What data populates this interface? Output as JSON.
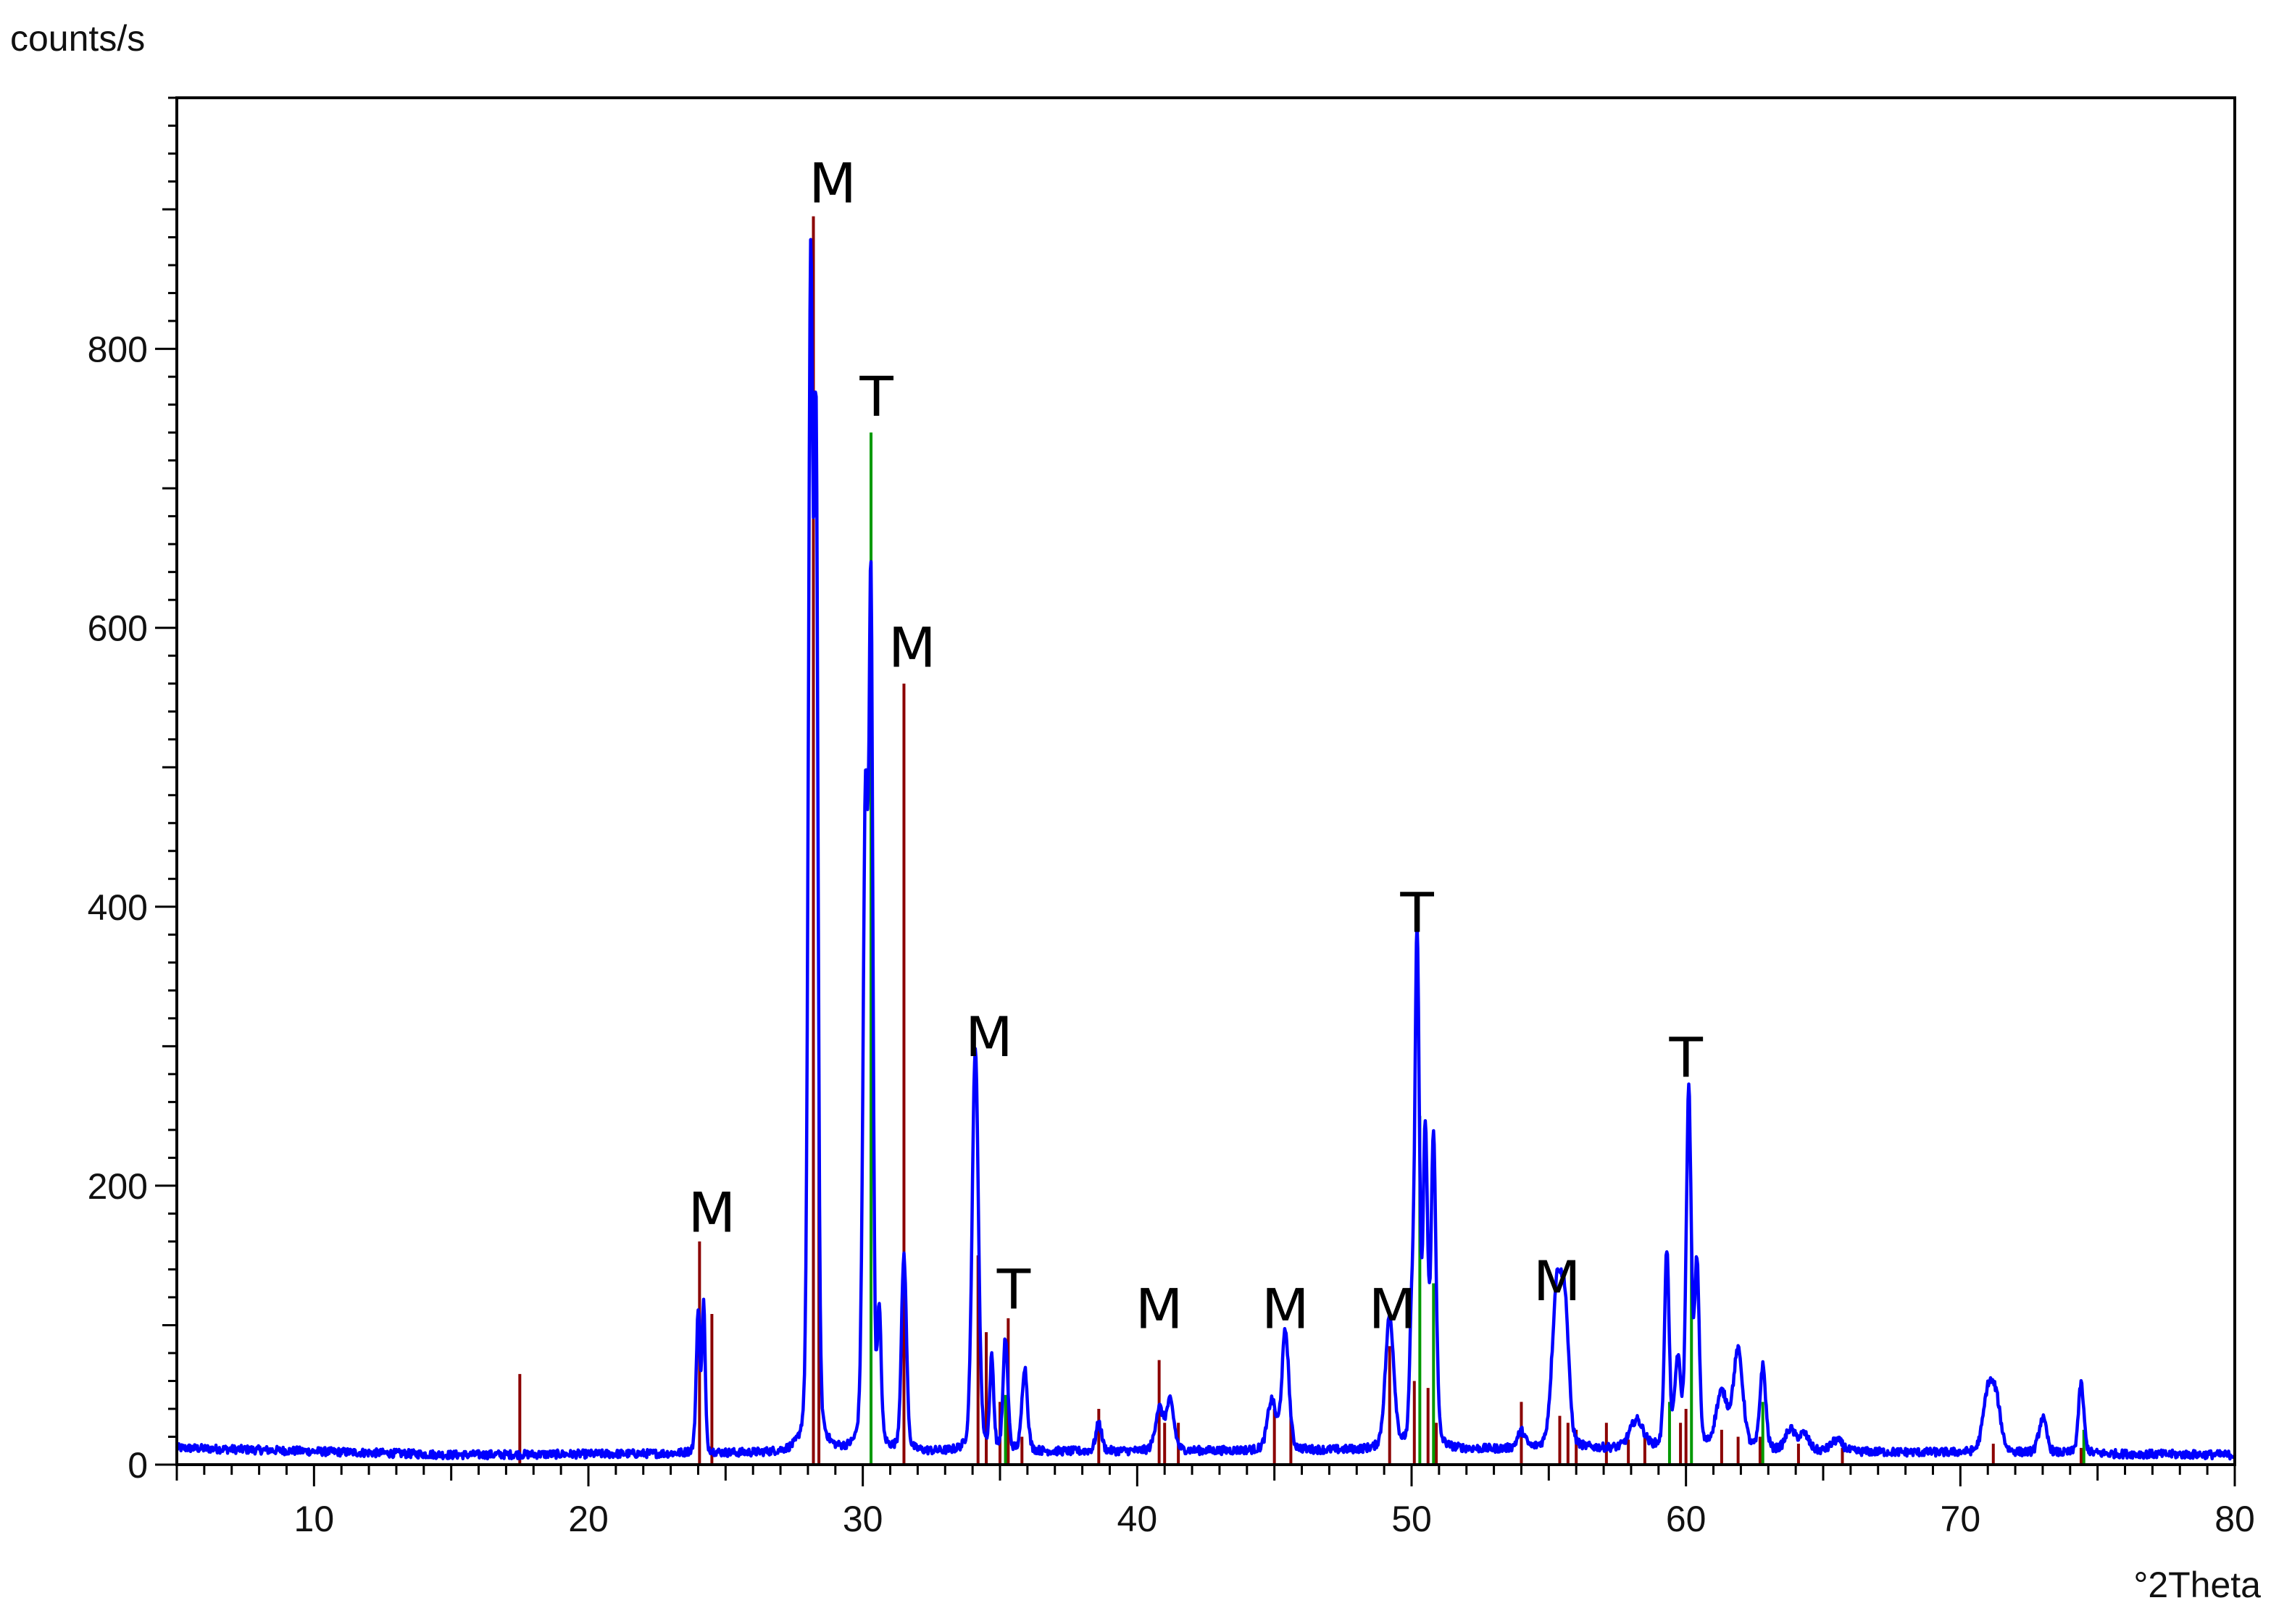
{
  "chart_data": {
    "type": "line",
    "ylabel": "counts/s",
    "xlabel": "°2Theta",
    "xlim": [
      5,
      80
    ],
    "ylim": [
      0,
      980
    ],
    "xticks": [
      10,
      20,
      30,
      40,
      50,
      60,
      70,
      80
    ],
    "yticks": [
      0,
      200,
      400,
      600,
      800
    ],
    "grid": false,
    "colors": {
      "measured": "#0000ff",
      "phase_m": "#8b0000",
      "phase_t": "#009900"
    },
    "measured_peaks": [
      [
        24.0,
        100,
        0.1
      ],
      [
        24.2,
        105,
        0.08
      ],
      [
        28.1,
        835,
        0.12
      ],
      [
        28.3,
        680,
        0.1
      ],
      [
        30.1,
        460,
        0.13
      ],
      [
        30.3,
        580,
        0.1
      ],
      [
        30.6,
        90,
        0.1
      ],
      [
        31.5,
        140,
        0.13
      ],
      [
        34.1,
        290,
        0.16
      ],
      [
        34.7,
        65,
        0.1
      ],
      [
        35.2,
        80,
        0.12
      ],
      [
        35.9,
        60,
        0.14
      ],
      [
        38.6,
        20,
        0.15
      ],
      [
        40.8,
        30,
        0.2
      ],
      [
        41.2,
        35,
        0.2
      ],
      [
        44.9,
        35,
        0.22
      ],
      [
        45.4,
        85,
        0.18
      ],
      [
        49.2,
        95,
        0.22
      ],
      [
        50.0,
        80,
        0.1
      ],
      [
        50.2,
        365,
        0.12
      ],
      [
        50.5,
        220,
        0.12
      ],
      [
        50.8,
        220,
        0.13
      ],
      [
        54.0,
        12,
        0.2
      ],
      [
        55.3,
        115,
        0.25
      ],
      [
        55.6,
        85,
        0.2
      ],
      [
        58.2,
        20,
        0.35
      ],
      [
        59.3,
        140,
        0.12
      ],
      [
        59.7,
        60,
        0.15
      ],
      [
        60.1,
        255,
        0.13
      ],
      [
        60.4,
        130,
        0.12
      ],
      [
        61.3,
        40,
        0.3
      ],
      [
        61.9,
        70,
        0.25
      ],
      [
        62.8,
        60,
        0.15
      ],
      [
        63.8,
        15,
        0.25
      ],
      [
        64.3,
        12,
        0.25
      ],
      [
        65.5,
        8,
        0.3
      ],
      [
        71.0,
        40,
        0.25
      ],
      [
        71.3,
        35,
        0.25
      ],
      [
        73.0,
        25,
        0.2
      ],
      [
        74.4,
        50,
        0.14
      ]
    ],
    "reference_m": [
      [
        17.5,
        65
      ],
      [
        24.05,
        160
      ],
      [
        24.5,
        108
      ],
      [
        28.2,
        895
      ],
      [
        28.4,
        270
      ],
      [
        31.5,
        560
      ],
      [
        34.2,
        150
      ],
      [
        34.5,
        95
      ],
      [
        35.0,
        45
      ],
      [
        35.3,
        105
      ],
      [
        35.8,
        20
      ],
      [
        38.6,
        40
      ],
      [
        40.8,
        75
      ],
      [
        41.0,
        30
      ],
      [
        41.5,
        30
      ],
      [
        45.0,
        40
      ],
      [
        45.6,
        35
      ],
      [
        49.2,
        85
      ],
      [
        50.1,
        60
      ],
      [
        50.6,
        55
      ],
      [
        50.9,
        30
      ],
      [
        54.0,
        45
      ],
      [
        55.4,
        35
      ],
      [
        55.7,
        30
      ],
      [
        56.0,
        25
      ],
      [
        57.1,
        30
      ],
      [
        57.9,
        18
      ],
      [
        58.5,
        22
      ],
      [
        59.8,
        30
      ],
      [
        60.0,
        40
      ],
      [
        61.3,
        25
      ],
      [
        61.9,
        20
      ],
      [
        62.7,
        20
      ],
      [
        64.1,
        15
      ],
      [
        65.7,
        12
      ],
      [
        71.2,
        15
      ],
      [
        74.4,
        12
      ]
    ],
    "reference_t": [
      [
        30.3,
        740
      ],
      [
        35.2,
        50
      ],
      [
        50.3,
        250
      ],
      [
        50.8,
        130
      ],
      [
        59.4,
        45
      ],
      [
        60.2,
        165
      ],
      [
        62.8,
        45
      ],
      [
        74.5,
        25
      ]
    ],
    "annotations": [
      {
        "text": "M",
        "x": 24.5,
        "y": 167
      },
      {
        "text": "M",
        "x": 28.9,
        "y": 905
      },
      {
        "text": "T",
        "x": 30.5,
        "y": 752
      },
      {
        "text": "M",
        "x": 31.8,
        "y": 572
      },
      {
        "text": "M",
        "x": 34.6,
        "y": 293
      },
      {
        "text": "T",
        "x": 35.5,
        "y": 112
      },
      {
        "text": "M",
        "x": 40.8,
        "y": 98
      },
      {
        "text": "M",
        "x": 45.4,
        "y": 98
      },
      {
        "text": "M",
        "x": 49.3,
        "y": 98
      },
      {
        "text": "T",
        "x": 50.2,
        "y": 382
      },
      {
        "text": "M",
        "x": 55.3,
        "y": 118
      },
      {
        "text": "T",
        "x": 60.0,
        "y": 278
      }
    ]
  }
}
